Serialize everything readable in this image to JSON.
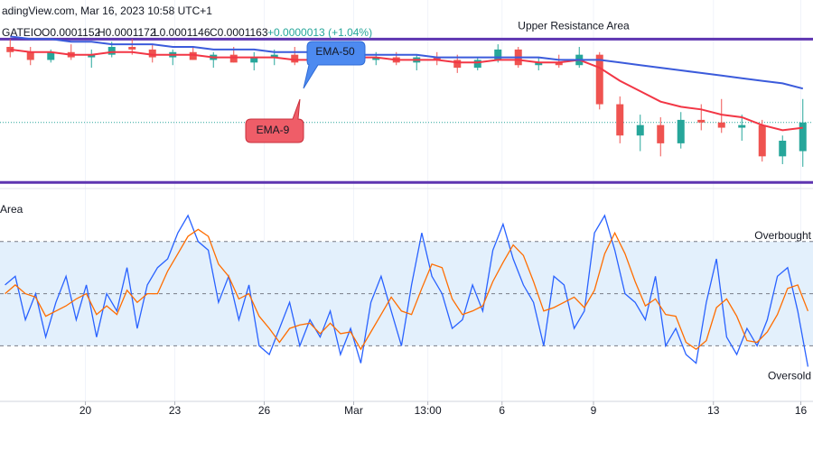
{
  "header": {
    "source": "adingView.com, Mar 16, 2023 10:58 UTC+1",
    "symbol": "GATEIO",
    "open": "O0.0001152",
    "high": "H0.0001172",
    "low": "L0.0001146",
    "close": "C0.0001163",
    "change": "+0.0000013 (+1.04%)"
  },
  "chart_data": [
    {
      "type": "candlestick",
      "up_color": "#26a69a",
      "down_color": "#ef5350",
      "open": [
        0.0001192,
        0.000119,
        0.0001187,
        0.000119,
        0.0001188,
        0.0001189,
        0.0001192,
        0.0001191,
        0.0001188,
        0.000119,
        0.0001187,
        0.0001189,
        0.0001186,
        0.0001188,
        0.0001189,
        0.0001186,
        0.0001188,
        0.000119,
        0.0001187,
        0.0001188,
        0.0001186,
        0.0001188,
        0.0001187,
        0.0001184,
        0.0001187,
        0.0001191,
        0.0001185,
        0.0001186,
        0.0001185,
        0.0001189,
        0.000117,
        0.0001158,
        0.0001162,
        0.0001155,
        0.0001164,
        0.0001163,
        0.0001161,
        0.0001162,
        0.000115,
        0.0001152
      ],
      "high": [
        0.0001195,
        0.0001192,
        0.0001191,
        0.0001193,
        0.0001191,
        0.0001194,
        0.0001195,
        0.0001193,
        0.0001191,
        0.0001192,
        0.000119,
        0.0001192,
        0.000119,
        0.0001191,
        0.0001192,
        0.0001189,
        0.0001191,
        0.0001192,
        0.000119,
        0.000119,
        0.0001189,
        0.000119,
        0.0001189,
        0.0001188,
        0.0001193,
        0.0001192,
        0.0001188,
        0.0001189,
        0.0001192,
        0.000119,
        0.0001173,
        0.0001166,
        0.0001165,
        0.0001167,
        0.000117,
        0.0001172,
        0.0001166,
        0.0001164,
        0.0001158,
        0.0001172
      ],
      "low": [
        0.0001188,
        0.0001185,
        0.0001186,
        0.0001187,
        0.0001184,
        0.0001188,
        0.0001189,
        0.0001186,
        0.0001185,
        0.0001187,
        0.0001184,
        0.0001186,
        0.0001183,
        0.0001185,
        0.0001185,
        0.0001184,
        0.0001186,
        0.0001186,
        0.0001185,
        0.0001185,
        0.0001183,
        0.0001185,
        0.0001182,
        0.0001183,
        0.0001186,
        0.0001184,
        0.0001183,
        0.0001184,
        0.0001184,
        0.0001168,
        0.0001155,
        0.0001152,
        0.000115,
        0.0001153,
        0.000116,
        0.0001159,
        0.0001156,
        0.0001148,
        0.0001147,
        0.0001146
      ],
      "close": [
        0.000119,
        0.0001187,
        0.000119,
        0.0001188,
        0.0001189,
        0.0001192,
        0.0001191,
        0.0001188,
        0.000119,
        0.0001187,
        0.0001189,
        0.0001186,
        0.0001188,
        0.0001189,
        0.0001186,
        0.0001188,
        0.000119,
        0.0001187,
        0.0001188,
        0.0001186,
        0.0001188,
        0.0001187,
        0.0001184,
        0.0001187,
        0.0001191,
        0.0001185,
        0.0001186,
        0.0001185,
        0.0001189,
        0.000117,
        0.0001158,
        0.0001162,
        0.0001155,
        0.0001164,
        0.0001163,
        0.0001161,
        0.0001162,
        0.000115,
        0.0001156,
        0.0001163
      ],
      "series": [
        {
          "name": "EMA-9",
          "color": "#f23645",
          "values": [
            0.0001191,
            0.000119,
            0.000119,
            0.0001189,
            0.0001189,
            0.000119,
            0.000119,
            0.0001189,
            0.0001189,
            0.0001189,
            0.0001188,
            0.0001188,
            0.0001188,
            0.0001188,
            0.0001187,
            0.0001187,
            0.0001188,
            0.0001188,
            0.0001188,
            0.0001187,
            0.0001187,
            0.0001187,
            0.0001186,
            0.0001186,
            0.0001187,
            0.0001187,
            0.0001186,
            0.0001186,
            0.0001187,
            0.0001184,
            0.0001179,
            0.0001175,
            0.0001171,
            0.0001169,
            0.0001168,
            0.0001166,
            0.0001165,
            0.0001162,
            0.000116,
            0.0001161
          ]
        },
        {
          "name": "EMA-50",
          "color": "#3b5bdb",
          "values": [
            0.0001196,
            0.0001195,
            0.0001195,
            0.0001194,
            0.0001194,
            0.0001193,
            0.0001193,
            0.0001193,
            0.0001192,
            0.0001192,
            0.0001191,
            0.0001191,
            0.0001191,
            0.000119,
            0.000119,
            0.000119,
            0.000119,
            0.0001189,
            0.0001189,
            0.0001189,
            0.0001189,
            0.0001188,
            0.0001188,
            0.0001188,
            0.0001188,
            0.0001188,
            0.0001188,
            0.0001187,
            0.0001187,
            0.0001187,
            0.0001186,
            0.0001185,
            0.0001184,
            0.0001183,
            0.0001182,
            0.0001181,
            0.000118,
            0.0001179,
            0.0001178,
            0.0001176
          ]
        }
      ],
      "ylim": [
        0.0001138,
        0.000121
      ],
      "levels": [
        {
          "value": 0.0001195,
          "label": "Upper Resistance Area",
          "color": "#5e35b1"
        },
        {
          "value": 0.000114,
          "color": "#5e35b1"
        }
      ]
    },
    {
      "type": "line",
      "annotation": "Area",
      "series": [
        {
          "color": "#2962ff",
          "values": [
            55,
            60,
            35,
            50,
            25,
            45,
            60,
            35,
            55,
            25,
            50,
            40,
            65,
            30,
            55,
            65,
            70,
            85,
            95,
            80,
            75,
            45,
            60,
            35,
            55,
            20,
            15,
            30,
            45,
            20,
            35,
            25,
            40,
            15,
            30,
            10,
            45,
            60,
            40,
            20,
            55,
            85,
            60,
            50,
            30,
            35,
            55,
            40,
            75,
            90,
            70,
            55,
            45,
            20,
            60,
            55,
            30,
            40,
            85,
            95,
            75,
            50,
            45,
            35,
            60,
            20,
            30,
            15,
            10,
            45,
            70,
            25,
            15,
            30,
            20,
            35,
            60,
            65,
            40,
            8
          ]
        },
        {
          "color": "#ff6d00",
          "values": [
            50,
            55,
            50,
            48,
            37,
            40,
            43,
            47,
            50,
            38,
            43,
            38,
            52,
            45,
            50,
            50,
            63,
            73,
            83,
            87,
            83,
            67,
            60,
            47,
            50,
            37,
            30,
            22,
            30,
            32,
            33,
            27,
            33,
            27,
            28,
            18,
            28,
            38,
            48,
            40,
            38,
            53,
            67,
            65,
            47,
            38,
            40,
            43,
            57,
            68,
            78,
            72,
            57,
            40,
            42,
            45,
            48,
            42,
            52,
            73,
            85,
            73,
            57,
            43,
            47,
            38,
            37,
            22,
            18,
            23,
            42,
            47,
            37,
            23,
            22,
            28,
            38,
            53,
            55,
            40
          ]
        }
      ],
      "ylim": [
        -12,
        110
      ],
      "levels": [
        {
          "value": 80,
          "label": "Overbought"
        },
        {
          "value": 50
        },
        {
          "value": 20,
          "label": "Oversold"
        }
      ],
      "band_color": "#e3f0fc",
      "xticks": [
        {
          "value": 7.9,
          "label": "20"
        },
        {
          "value": 16.7,
          "label": "23"
        },
        {
          "value": 25.5,
          "label": "26"
        },
        {
          "value": 34.3,
          "label": "Mar"
        },
        {
          "value": 41.6,
          "label": "13:00"
        },
        {
          "value": 48.9,
          "label": "6"
        },
        {
          "value": 57.9,
          "label": "9"
        },
        {
          "value": 69.7,
          "label": "13"
        },
        {
          "value": 78.3,
          "label": "16"
        }
      ]
    }
  ]
}
